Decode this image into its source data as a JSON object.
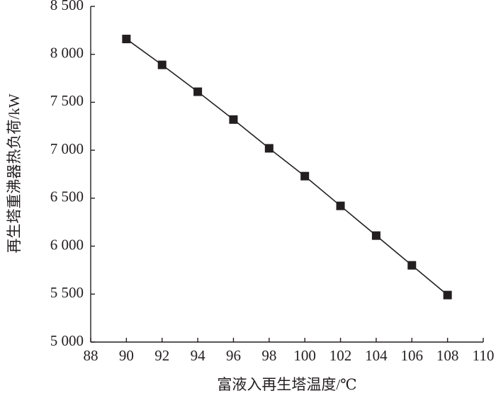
{
  "chart_data": {
    "type": "line",
    "x_label": "富液入再生塔温度/℃",
    "y_label": "再生塔重沸器热负荷/kW",
    "x": [
      90,
      92,
      94,
      96,
      98,
      100,
      102,
      104,
      106,
      108
    ],
    "series": [
      {
        "color": "#231f20",
        "marker": "square",
        "values": [
          8160,
          7890,
          7610,
          7320,
          7020,
          6730,
          6420,
          6110,
          5800,
          5490
        ]
      }
    ],
    "xlim": [
      88,
      110
    ],
    "xticks": [
      88,
      90,
      92,
      94,
      96,
      98,
      100,
      102,
      104,
      106,
      108,
      110
    ],
    "ylim": [
      5000,
      8500
    ],
    "yticks": [
      {
        "value": 5000,
        "label": "5 000"
      },
      {
        "value": 5500,
        "label": "5 500"
      },
      {
        "value": 6000,
        "label": "6 000"
      },
      {
        "value": 6500,
        "label": "6 500"
      },
      {
        "value": 7000,
        "label": "7 000"
      },
      {
        "value": 7500,
        "label": "7 500"
      },
      {
        "value": 8000,
        "label": "8 000"
      },
      {
        "value": 8500,
        "label": "8 500"
      }
    ],
    "grid": false
  }
}
